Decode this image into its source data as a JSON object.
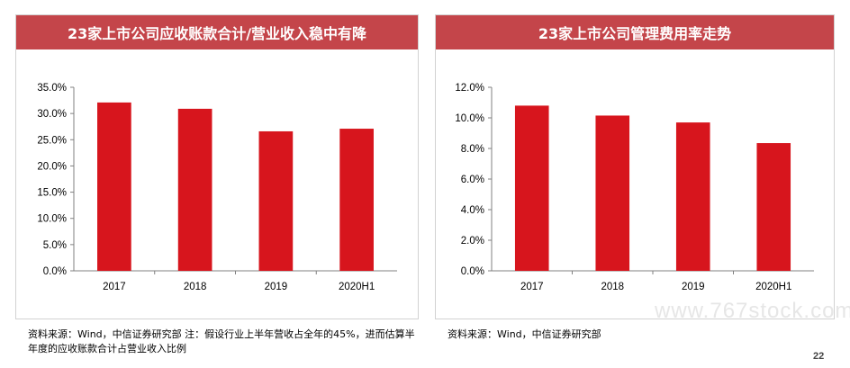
{
  "chart_data": [
    {
      "type": "bar",
      "title": "23家上市公司应收账款合计/营业收入稳中有降",
      "categories": [
        "2017",
        "2018",
        "2019",
        "2020H1"
      ],
      "values": [
        32.1,
        30.9,
        26.6,
        27.1
      ],
      "y_ticks": [
        "0.0%",
        "5.0%",
        "10.0%",
        "15.0%",
        "20.0%",
        "25.0%",
        "30.0%",
        "35.0%"
      ],
      "ylim": [
        0,
        35
      ],
      "grid": false,
      "bar_color": "#d7151d"
    },
    {
      "type": "bar",
      "title": "23家上市公司管理费用率走势",
      "categories": [
        "2017",
        "2018",
        "2019",
        "2020H1"
      ],
      "values": [
        10.8,
        10.15,
        9.7,
        8.35
      ],
      "y_ticks": [
        "0.0%",
        "2.0%",
        "4.0%",
        "6.0%",
        "8.0%",
        "10.0%",
        "12.0%"
      ],
      "ylim": [
        0,
        12
      ],
      "grid": false,
      "bar_color": "#d7151d"
    }
  ],
  "notes": {
    "left": "资料来源：Wind，中信证券研究部 注：假设行业上半年营收占全年的45%，进而估算半年度的应收账款合计占营业收入比例",
    "right": "资料来源：Wind，中信证券研究部"
  },
  "watermark": "www.767stock.com",
  "page_number": "22",
  "colors": {
    "title_bg": "#c4454a",
    "bar": "#d7151d"
  }
}
